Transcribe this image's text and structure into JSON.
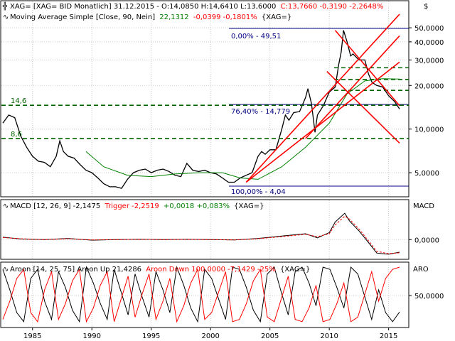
{
  "header": {
    "symbol_icon": "bar-chart-icon",
    "main": {
      "text": "XAG= [XAG= BID Monatlich] 31.12.2015 - O:14,0850 H:14,6410 L:13,6000",
      "close": "C:13,7660 -0,3190 -2,2648%"
    },
    "ma": {
      "text": "Moving Average Simple [Close, 90, Nein]",
      "value": "22,1312",
      "change": "-0,0399 -0,1801%",
      "tag": "{XAG=}"
    },
    "macd": {
      "text": "MACD [12, 26, 9] -2,1475",
      "trigger": "Trigger -2,2519",
      "change": "+0,0018 +0,083%",
      "tag": "{XAG=}"
    },
    "aroon": {
      "text": "Aroon [14, 25, 75] Aroon Up 21,4286",
      "down": "Aroon Down 100,0000 -7,1429 -25%",
      "tag": "{XAG=}"
    }
  },
  "price_axis": {
    "currency": "$",
    "ticks": [
      {
        "v": 50,
        "label": "50,0000"
      },
      {
        "v": 40,
        "label": "40,0000"
      },
      {
        "v": 30,
        "label": "30,0000"
      },
      {
        "v": 20,
        "label": "20,0000"
      },
      {
        "v": 10,
        "label": "10,0000"
      },
      {
        "v": 5,
        "label": "5,0000"
      }
    ]
  },
  "macd_axis": {
    "title": "MACD",
    "tick": "0,0000"
  },
  "aroon_axis": {
    "title": "ARO",
    "tick": "50,0000"
  },
  "annotations": {
    "level_14_6": "14,6",
    "level_8_6": "8,6",
    "fib_0": "0,00% - 49,51",
    "fib_76": "76,40% - 14,779",
    "fib_100": "100,00% - 4,04"
  },
  "colors": {
    "price": "#000000",
    "ma": "#008000",
    "fib": "#000080",
    "channel": "#ff0000",
    "levels": "#006400",
    "macd": "#000000",
    "trigger": "#ff0000",
    "aroon_up": "#000000",
    "aroon_down": "#ff0000"
  },
  "chart_data": [
    {
      "type": "line",
      "title": "XAG= [XAG= BID Monatlich]",
      "scale": "log",
      "ylim": [
        3.3,
        62
      ],
      "x": [
        1982.5,
        1983.0,
        1983.5,
        1984.0,
        1984.5,
        1985.0,
        1985.5,
        1986.0,
        1986.5,
        1987.0,
        1987.3,
        1987.6,
        1988.0,
        1988.5,
        1989.0,
        1989.5,
        1990.0,
        1990.5,
        1991.0,
        1991.5,
        1992.0,
        1992.5,
        1993.0,
        1993.5,
        1994.0,
        1994.5,
        1995.0,
        1995.5,
        1996.0,
        1996.5,
        1997.0,
        1997.5,
        1998.0,
        1998.5,
        1999.0,
        1999.5,
        2000.0,
        2000.5,
        2001.0,
        2001.5,
        2002.0,
        2002.5,
        2003.0,
        2003.5,
        2004.0,
        2004.3,
        2004.6,
        2005.0,
        2005.5,
        2006.0,
        2006.3,
        2006.6,
        2007.0,
        2007.5,
        2008.0,
        2008.2,
        2008.5,
        2008.8,
        2009.0,
        2009.5,
        2010.0,
        2010.5,
        2010.8,
        2011.0,
        2011.2,
        2011.5,
        2011.8,
        2012.0,
        2012.5,
        2013.0,
        2013.3,
        2013.6,
        2014.0,
        2014.5,
        2015.0,
        2015.5,
        2015.92
      ],
      "series": [
        {
          "name": "XAG=",
          "values": [
            11.0,
            12.5,
            12.0,
            9.0,
            7.5,
            6.5,
            6.0,
            5.9,
            5.5,
            6.5,
            8.3,
            7.0,
            6.5,
            6.3,
            5.7,
            5.2,
            5.0,
            4.6,
            4.2,
            4.0,
            4.0,
            3.9,
            4.5,
            5.0,
            5.2,
            5.3,
            5.0,
            5.2,
            5.3,
            5.1,
            4.8,
            4.7,
            5.8,
            5.2,
            5.1,
            5.2,
            5.0,
            4.9,
            4.6,
            4.3,
            4.3,
            4.6,
            4.8,
            5.0,
            6.5,
            7.0,
            6.7,
            7.2,
            7.2,
            10.0,
            12.5,
            11.5,
            13.0,
            13.2,
            16.5,
            19.0,
            15.0,
            9.5,
            12.5,
            14.5,
            18.0,
            19.5,
            28.0,
            34.0,
            48.0,
            40.0,
            32.0,
            33.0,
            30.0,
            30.0,
            24.0,
            21.0,
            20.0,
            19.5,
            17.0,
            15.5,
            13.77
          ]
        },
        {
          "name": "Moving Average Simple",
          "x": [
            1989.5,
            1991.0,
            1993.0,
            1995.0,
            1997.0,
            1999.0,
            2001.0,
            2002.5,
            2004.0,
            2006.0,
            2008.0,
            2010.0,
            2011.5,
            2013.0,
            2014.5,
            2015.92
          ],
          "values": [
            7.0,
            5.5,
            4.8,
            4.7,
            4.9,
            5.0,
            5.0,
            4.6,
            4.5,
            5.5,
            7.5,
            11.0,
            17.5,
            21.5,
            22.3,
            22.13
          ]
        }
      ]
    },
    {
      "type": "line",
      "title": "MACD [12, 26, 9]",
      "x": [
        1982.5,
        1984.0,
        1986.0,
        1988.0,
        1990.0,
        1992.0,
        1994.0,
        1996.0,
        1998.0,
        2000.0,
        2002.0,
        2004.0,
        2006.0,
        2008.0,
        2009.0,
        2010.0,
        2010.5,
        2011.3,
        2011.7,
        2012.5,
        2013.5,
        2014.0,
        2015.0,
        2015.92
      ],
      "ylim": [
        -3,
        5
      ],
      "series": [
        {
          "name": "MACD",
          "values": [
            0.4,
            0.1,
            0.0,
            0.2,
            -0.1,
            0.0,
            0.05,
            0.0,
            0.05,
            0.0,
            -0.05,
            0.2,
            0.6,
            1.0,
            0.3,
            1.2,
            3.0,
            4.5,
            3.2,
            1.5,
            -1.0,
            -2.3,
            -2.5,
            -2.15
          ]
        },
        {
          "name": "Trigger",
          "values": [
            0.35,
            0.15,
            0.0,
            0.15,
            -0.05,
            0.0,
            0.05,
            0.0,
            0.04,
            0.0,
            -0.05,
            0.15,
            0.5,
            0.9,
            0.5,
            1.0,
            2.5,
            4.0,
            3.5,
            1.8,
            -0.7,
            -2.0,
            -2.4,
            -2.25
          ]
        }
      ]
    },
    {
      "type": "line",
      "title": "Aroon [14, 25, 75]",
      "ylim": [
        0,
        100
      ],
      "series": [
        {
          "name": "Aroon Up",
          "values": [
            96,
            60,
            20,
            4,
            80,
            96,
            40,
            8,
            92,
            64,
            24,
            4,
            100,
            72,
            36,
            8,
            96,
            56,
            16,
            88,
            48,
            12,
            92,
            60,
            20,
            100,
            68,
            28,
            4,
            96,
            80,
            44,
            8,
            100,
            96,
            64,
            24,
            4,
            88,
            100,
            56,
            16,
            92,
            100,
            72,
            32,
            100,
            96,
            64,
            28,
            100,
            88,
            48,
            8,
            60,
            20,
            4,
            21
          ]
        },
        {
          "name": "Aroon Down",
          "values": [
            8,
            40,
            80,
            96,
            20,
            4,
            60,
            92,
            8,
            36,
            76,
            96,
            4,
            28,
            68,
            92,
            4,
            44,
            84,
            12,
            52,
            88,
            8,
            40,
            80,
            4,
            32,
            72,
            96,
            8,
            20,
            56,
            92,
            4,
            8,
            36,
            76,
            96,
            12,
            4,
            44,
            84,
            8,
            4,
            28,
            68,
            4,
            8,
            36,
            72,
            4,
            12,
            52,
            92,
            40,
            80,
            96,
            100
          ]
        }
      ]
    }
  ],
  "time_axis": {
    "ticks": [
      {
        "v": 1985,
        "label": "1985"
      },
      {
        "v": 1990,
        "label": "1990"
      },
      {
        "v": 1995,
        "label": "1995"
      },
      {
        "v": 2000,
        "label": "2000"
      },
      {
        "v": 2005,
        "label": "2005"
      },
      {
        "v": 2010,
        "label": "2010"
      },
      {
        "v": 2015,
        "label": "2015"
      }
    ]
  }
}
